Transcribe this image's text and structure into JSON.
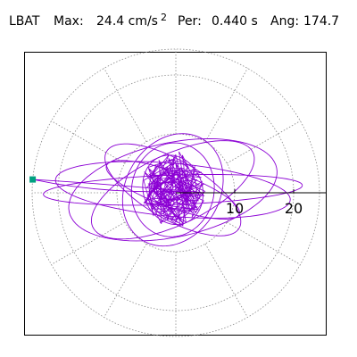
{
  "header": {
    "station": "LBAT",
    "max_label": "Max:",
    "max_value": "24.4 cm/s",
    "max_unit_sup": "2",
    "per_label": "Per:",
    "per_value": "0.440 s",
    "ang_label": "Ang:",
    "ang_value": "174.7"
  },
  "chart_data": {
    "type": "scatter",
    "title": "LBAT  Max:  24.4 cm/s2  Per:  0.440 s  Ang: 174.7",
    "xlabel": "",
    "ylabel": "",
    "axis_ticks": [
      {
        "value": 10,
        "label": "10"
      },
      {
        "value": 20,
        "label": "20"
      }
    ],
    "radial_rings": [
      10,
      20
    ],
    "spoke_angles_deg": [
      0,
      30,
      60,
      90,
      120,
      150,
      180,
      210,
      240,
      270,
      300,
      330
    ],
    "grid": true,
    "max_marker": {
      "value": 24.4,
      "angle_deg": 174.7
    },
    "colors": {
      "trace": "#8b00d4",
      "grid": "#888888",
      "axis": "#000000",
      "marker": "#00a080"
    },
    "series": [
      {
        "type": "ellipse_components",
        "components": [
          {
            "a": 22.0,
            "b": 2.5,
            "rot": 2
          },
          {
            "a": 18.0,
            "b": 8.0,
            "rot": 12
          },
          {
            "a": 20.0,
            "b": 4.5,
            "rot": -5
          },
          {
            "a": 15.0,
            "b": 6.0,
            "rot": 25
          },
          {
            "a": 13.0,
            "b": 5.0,
            "rot": -30
          },
          {
            "a": 10.0,
            "b": 8.0,
            "rot": 60
          },
          {
            "a": 8.0,
            "b": 7.0,
            "rot": 80
          },
          {
            "a": 6.0,
            "b": 5.0,
            "rot": 110
          },
          {
            "a": 12.0,
            "b": 3.0,
            "rot": 160
          },
          {
            "a": 5.0,
            "b": 4.0,
            "rot": 95
          }
        ],
        "center": [
          -0.5,
          0.5
        ]
      }
    ]
  }
}
